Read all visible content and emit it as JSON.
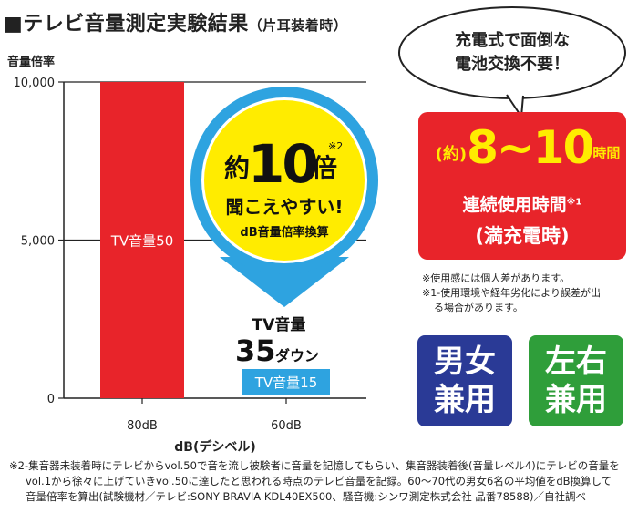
{
  "header": {
    "title": "■テレビ音量測定実験結果",
    "title_sub": "（片耳装着時）"
  },
  "chart_data": {
    "type": "bar",
    "ylabel": "音量倍率",
    "xlabel": "dB(デシベル)",
    "ylim": [
      0,
      10000
    ],
    "yticks": [
      "10,000",
      "5,000",
      "0"
    ],
    "ytick_values": [
      10000,
      5000,
      0
    ],
    "categories": [
      "80dB",
      "60dB"
    ],
    "values": [
      10000,
      0
    ],
    "bar_labels": [
      "TV音量50",
      "TV音量15"
    ],
    "bar_colors": [
      "#e8242a",
      "#2ea3e0"
    ],
    "annotation": {
      "prefix": "約",
      "number": "10",
      "suffix": "倍",
      "note_mark": "※2",
      "line2": "聞こえやすい!",
      "line3": "dB音量倍率換算"
    },
    "drop": {
      "line1": "TV音量",
      "number": "35",
      "unit": "ダウン"
    }
  },
  "speech_bubble": {
    "line1": "充電式で面倒な",
    "line2": "電池交換不要！"
  },
  "battery_box": {
    "prefix": "(約)",
    "value": "8~10",
    "unit": "時間",
    "line2": "連続使用時間",
    "note_mark": "※1",
    "line3": "(満充電時)"
  },
  "notes": {
    "line1": "※使用感には個人差があります。",
    "line2": "※1-使用環境や経年劣化により誤差が出",
    "line3": "る場合があります。"
  },
  "badges": [
    {
      "line1": "男女",
      "line2": "兼用",
      "color": "#2a3a96"
    },
    {
      "line1": "左右",
      "line2": "兼用",
      "color": "#2f9e3a"
    }
  ],
  "footnote": {
    "line1": "※2-集音器未装着時にテレビからvol.50で音を流し被験者に音量を記憶してもらい、集音器装着後(音量レベル4)にテレビの音量を",
    "line2": "vol.1から徐々に上げていきvol.50に達したと思われる時点のテレビ音量を記録。60～70代の男女6名の平均値をdB換算して",
    "line3": "音量倍率を算出(試験機材／テレビ:SONY BRAVIA KDL40EX500、騒音機:シンワ測定株式会社 品番78588)／自社調べ"
  }
}
